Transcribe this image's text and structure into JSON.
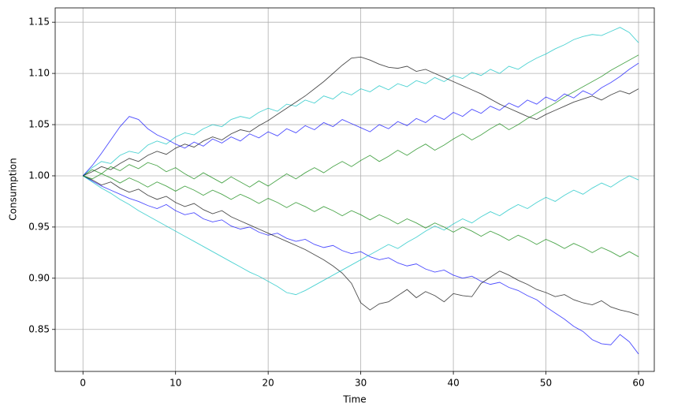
{
  "chart_data": {
    "type": "line",
    "xlabel": "Time",
    "ylabel": "Consumption",
    "grid": true,
    "xlim": [
      -3,
      61.7
    ],
    "ylim": [
      0.809,
      1.164
    ],
    "xticks": [
      0,
      10,
      20,
      30,
      40,
      50,
      60
    ],
    "yticks": [
      0.85,
      {
        "value": 0.9,
        "label": "0.90"
      },
      0.95,
      {
        "value": 1.0,
        "label": "1.00"
      },
      1.05,
      {
        "value": 1.1,
        "label": "1.10"
      },
      1.15
    ],
    "x": [
      0,
      1,
      2,
      3,
      4,
      5,
      6,
      7,
      8,
      9,
      10,
      11,
      12,
      13,
      14,
      15,
      16,
      17,
      18,
      19,
      20,
      21,
      22,
      23,
      24,
      25,
      26,
      27,
      28,
      29,
      30,
      31,
      32,
      33,
      34,
      35,
      36,
      37,
      38,
      39,
      40,
      41,
      42,
      43,
      44,
      45,
      46,
      47,
      48,
      49,
      50,
      51,
      52,
      53,
      54,
      55,
      56,
      57,
      58,
      59,
      60
    ],
    "series": [
      {
        "color": "#0000ff",
        "values": [
          1.0,
          0.995,
          0.99,
          0.986,
          0.982,
          0.978,
          0.975,
          0.971,
          0.968,
          0.972,
          0.966,
          0.962,
          0.964,
          0.958,
          0.955,
          0.957,
          0.951,
          0.948,
          0.95,
          0.945,
          0.942,
          0.944,
          0.939,
          0.936,
          0.938,
          0.933,
          0.93,
          0.932,
          0.927,
          0.924,
          0.926,
          0.921,
          0.918,
          0.92,
          0.915,
          0.912,
          0.914,
          0.909,
          0.906,
          0.908,
          0.903,
          0.9,
          0.902,
          0.897,
          0.894,
          0.896,
          0.891,
          0.888,
          0.883,
          0.879,
          0.872,
          0.866,
          0.86,
          0.853,
          0.848,
          0.84,
          0.836,
          0.835,
          0.845,
          0.838,
          0.826
        ]
      },
      {
        "color": "#00bfbf",
        "values": [
          1.0,
          1.008,
          1.014,
          1.012,
          1.02,
          1.024,
          1.022,
          1.03,
          1.034,
          1.031,
          1.038,
          1.042,
          1.04,
          1.046,
          1.05,
          1.048,
          1.055,
          1.058,
          1.056,
          1.062,
          1.066,
          1.063,
          1.07,
          1.068,
          1.074,
          1.071,
          1.078,
          1.075,
          1.082,
          1.079,
          1.085,
          1.082,
          1.088,
          1.084,
          1.09,
          1.087,
          1.093,
          1.09,
          1.096,
          1.092,
          1.098,
          1.095,
          1.101,
          1.098,
          1.104,
          1.1,
          1.107,
          1.104,
          1.11,
          1.115,
          1.119,
          1.124,
          1.128,
          1.133,
          1.136,
          1.138,
          1.137,
          1.141,
          1.145,
          1.14,
          1.13
        ]
      },
      {
        "color": "#000000",
        "values": [
          1.0,
          1.004,
          1.009,
          1.006,
          1.012,
          1.017,
          1.014,
          1.02,
          1.024,
          1.021,
          1.027,
          1.031,
          1.028,
          1.034,
          1.038,
          1.035,
          1.041,
          1.045,
          1.043,
          1.049,
          1.054,
          1.06,
          1.066,
          1.072,
          1.078,
          1.085,
          1.092,
          1.1,
          1.108,
          1.115,
          1.116,
          1.113,
          1.109,
          1.106,
          1.105,
          1.107,
          1.102,
          1.104,
          1.1,
          1.096,
          1.092,
          1.088,
          1.084,
          1.08,
          1.075,
          1.07,
          1.066,
          1.062,
          1.058,
          1.055,
          1.06,
          1.064,
          1.068,
          1.072,
          1.075,
          1.078,
          1.074,
          1.079,
          1.083,
          1.08,
          1.085
        ]
      },
      {
        "color": "#000000",
        "values": [
          1.0,
          0.996,
          0.991,
          0.994,
          0.988,
          0.984,
          0.987,
          0.981,
          0.977,
          0.98,
          0.974,
          0.97,
          0.973,
          0.967,
          0.963,
          0.966,
          0.96,
          0.956,
          0.952,
          0.948,
          0.944,
          0.94,
          0.936,
          0.932,
          0.928,
          0.923,
          0.918,
          0.912,
          0.905,
          0.895,
          0.876,
          0.869,
          0.875,
          0.877,
          0.883,
          0.889,
          0.881,
          0.887,
          0.883,
          0.877,
          0.885,
          0.883,
          0.882,
          0.895,
          0.901,
          0.907,
          0.903,
          0.898,
          0.894,
          0.889,
          0.886,
          0.882,
          0.884,
          0.879,
          0.876,
          0.874,
          0.878,
          0.872,
          0.869,
          0.867,
          0.864
        ]
      },
      {
        "color": "#008000",
        "values": [
          1.0,
          1.006,
          1.002,
          1.009,
          1.005,
          1.011,
          1.007,
          1.013,
          1.01,
          1.004,
          1.008,
          1.002,
          0.997,
          1.003,
          0.998,
          0.993,
          0.999,
          0.994,
          0.989,
          0.995,
          0.99,
          0.996,
          1.002,
          0.997,
          1.003,
          1.008,
          1.003,
          1.009,
          1.014,
          1.009,
          1.015,
          1.02,
          1.014,
          1.019,
          1.025,
          1.02,
          1.026,
          1.031,
          1.025,
          1.03,
          1.036,
          1.041,
          1.035,
          1.04,
          1.046,
          1.051,
          1.045,
          1.05,
          1.056,
          1.061,
          1.066,
          1.071,
          1.077,
          1.082,
          1.087,
          1.092,
          1.097,
          1.103,
          1.108,
          1.113,
          1.118
        ]
      },
      {
        "color": "#00bfbf",
        "values": [
          1.0,
          0.994,
          0.988,
          0.983,
          0.977,
          0.972,
          0.966,
          0.961,
          0.956,
          0.951,
          0.946,
          0.941,
          0.936,
          0.931,
          0.926,
          0.921,
          0.916,
          0.911,
          0.906,
          0.902,
          0.897,
          0.892,
          0.886,
          0.884,
          0.888,
          0.893,
          0.898,
          0.903,
          0.908,
          0.913,
          0.918,
          0.923,
          0.928,
          0.933,
          0.929,
          0.935,
          0.94,
          0.946,
          0.951,
          0.947,
          0.953,
          0.958,
          0.954,
          0.96,
          0.965,
          0.961,
          0.967,
          0.972,
          0.968,
          0.974,
          0.979,
          0.975,
          0.981,
          0.986,
          0.982,
          0.988,
          0.993,
          0.989,
          0.995,
          1.0,
          0.996
        ]
      },
      {
        "color": "#0000ff",
        "values": [
          1.0,
          1.01,
          1.022,
          1.035,
          1.048,
          1.058,
          1.055,
          1.046,
          1.04,
          1.036,
          1.031,
          1.027,
          1.033,
          1.029,
          1.036,
          1.032,
          1.038,
          1.034,
          1.041,
          1.037,
          1.043,
          1.039,
          1.046,
          1.042,
          1.049,
          1.045,
          1.052,
          1.048,
          1.055,
          1.051,
          1.047,
          1.043,
          1.05,
          1.046,
          1.053,
          1.049,
          1.056,
          1.052,
          1.059,
          1.055,
          1.062,
          1.058,
          1.065,
          1.061,
          1.068,
          1.064,
          1.071,
          1.067,
          1.074,
          1.07,
          1.077,
          1.073,
          1.08,
          1.076,
          1.083,
          1.079,
          1.086,
          1.091,
          1.097,
          1.104,
          1.11
        ]
      },
      {
        "color": "#008000",
        "values": [
          1.0,
          0.997,
          1.002,
          0.998,
          0.993,
          0.998,
          0.994,
          0.989,
          0.994,
          0.99,
          0.985,
          0.99,
          0.986,
          0.981,
          0.986,
          0.982,
          0.977,
          0.982,
          0.978,
          0.973,
          0.978,
          0.974,
          0.969,
          0.974,
          0.97,
          0.965,
          0.97,
          0.966,
          0.961,
          0.966,
          0.962,
          0.957,
          0.962,
          0.958,
          0.953,
          0.958,
          0.954,
          0.949,
          0.954,
          0.95,
          0.945,
          0.95,
          0.946,
          0.941,
          0.946,
          0.942,
          0.937,
          0.942,
          0.938,
          0.933,
          0.938,
          0.934,
          0.929,
          0.934,
          0.93,
          0.925,
          0.93,
          0.926,
          0.921,
          0.926,
          0.921
        ]
      }
    ]
  }
}
